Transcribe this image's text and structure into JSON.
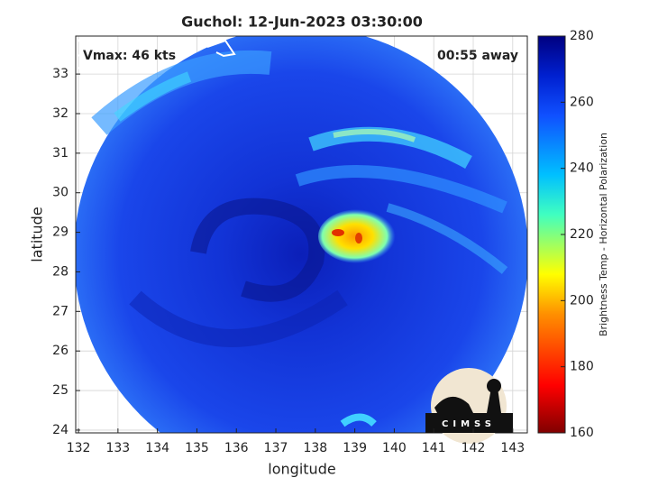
{
  "chart_data": {
    "type": "map",
    "title": "Guchol: 12-Jun-2023 03:30:00",
    "xlabel": "longitude",
    "ylabel": "latitude",
    "xlim": [
      131.93,
      143.37
    ],
    "ylim": [
      23.93,
      33.96
    ],
    "xticks": [
      132,
      133,
      134,
      135,
      136,
      137,
      138,
      139,
      140,
      141,
      142,
      143
    ],
    "yticks": [
      24,
      25,
      26,
      27,
      28,
      29,
      30,
      31,
      32,
      33
    ],
    "grid": true,
    "annotations": [
      "Vmax: 46 kts",
      "00:55 away"
    ],
    "colorbar": {
      "label": "Brightness Temp - Horizontal Polarization",
      "lim": [
        160,
        280
      ],
      "ticks": [
        160,
        180,
        200,
        220,
        240,
        260,
        280
      ]
    },
    "logo": "CIMSS"
  }
}
